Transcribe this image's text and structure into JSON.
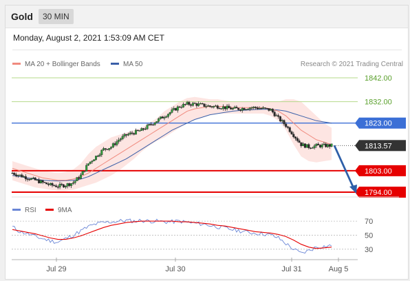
{
  "instrument": "Gold",
  "timeframe": "30 MIN",
  "timestamp": "Monday, August 2, 2021 1:53:09 AM CET",
  "credit": "Research © 2021 Trading Central",
  "colors": {
    "ma20": "#f08a7e",
    "ma50": "#3a5fa8",
    "resistance_green": "#b5d98a",
    "pivot_blue": "#3b6fd6",
    "support_red": "#e60000",
    "current_price_bg": "#333333",
    "rsi": "#6a86d6",
    "rsi_ma": "#e60000",
    "arrow": "#2e5fa8"
  },
  "chart_data": {
    "type": "line",
    "subtype": "candlestick",
    "price_legend": [
      "MA 20 + Bollinger Bands",
      "MA 50"
    ],
    "levels": [
      {
        "value": 1842.0,
        "label": "1842.00",
        "kind": "resistance"
      },
      {
        "value": 1832.0,
        "label": "1832.00",
        "kind": "resistance"
      },
      {
        "value": 1823.0,
        "label": "1823.00",
        "kind": "pivot"
      },
      {
        "value": 1813.57,
        "label": "1813.57",
        "kind": "current"
      },
      {
        "value": 1803.0,
        "label": "1803.00",
        "kind": "support"
      },
      {
        "value": 1794.0,
        "label": "1794.00",
        "kind": "support"
      }
    ],
    "x_labels": [
      "Jul 29",
      "Jul 30",
      "Jul 31",
      "Aug 5"
    ],
    "close_path": [
      1802,
      1801,
      1800,
      1799,
      1798,
      1797,
      1796.5,
      1797,
      1798,
      1801,
      1806,
      1809,
      1812,
      1813,
      1816,
      1818,
      1819,
      1820,
      1822,
      1824,
      1826,
      1828,
      1830,
      1831,
      1831,
      1830.5,
      1830,
      1830,
      1829.5,
      1829,
      1829,
      1829.5,
      1829.5,
      1829,
      1828.5,
      1825,
      1822,
      1818,
      1814,
      1813,
      1813.5,
      1813.5,
      1813.57
    ],
    "ma20": [
      1804,
      1803,
      1802,
      1801,
      1800,
      1799.5,
      1799,
      1799,
      1799.5,
      1800.5,
      1802,
      1804,
      1806,
      1808,
      1810,
      1812,
      1814,
      1816,
      1818,
      1820,
      1822,
      1824,
      1826,
      1828,
      1829,
      1829.5,
      1830,
      1830,
      1830,
      1829.5,
      1829.5,
      1829.5,
      1829.5,
      1829.5,
      1829,
      1828,
      1826,
      1823,
      1820,
      1818,
      1816,
      1815,
      1814
    ],
    "ma50": [
      1801,
      1800.5,
      1800,
      1799.5,
      1799,
      1798.8,
      1798.7,
      1798.8,
      1799,
      1799.5,
      1800.5,
      1802,
      1803.5,
      1805,
      1806.5,
      1808,
      1810,
      1812,
      1814,
      1816,
      1818,
      1820,
      1821.5,
      1823,
      1824.5,
      1825.5,
      1826.5,
      1827,
      1827.5,
      1828,
      1828.3,
      1828.5,
      1828.7,
      1828.8,
      1828.8,
      1828.5,
      1828,
      1827,
      1826,
      1825,
      1824,
      1823.5,
      1823
    ],
    "bb_upper": [
      1807,
      1806,
      1805,
      1804,
      1803,
      1802.5,
      1802,
      1802.5,
      1803.5,
      1806,
      1810,
      1813,
      1815,
      1817,
      1818,
      1819,
      1820,
      1821,
      1823,
      1825,
      1828,
      1830,
      1832,
      1833.5,
      1834,
      1833.5,
      1833,
      1833,
      1832.5,
      1832,
      1832,
      1832,
      1832,
      1832,
      1832,
      1832,
      1833,
      1833,
      1832,
      1829,
      1826,
      1823,
      1821
    ],
    "bb_lower": [
      1799,
      1798,
      1797,
      1796,
      1795.5,
      1795,
      1794.5,
      1794.5,
      1795,
      1796,
      1797,
      1798,
      1799.5,
      1801,
      1803,
      1805.5,
      1808,
      1811,
      1813.5,
      1815.5,
      1817,
      1819,
      1821,
      1823,
      1824.5,
      1825.5,
      1826.5,
      1827,
      1827,
      1827,
      1827,
      1827,
      1827,
      1827,
      1826,
      1824,
      1820,
      1814,
      1809,
      1807,
      1806.5,
      1807,
      1807.5
    ],
    "projection": {
      "from": 1813.57,
      "to": 1794.0
    },
    "rsi_legend": [
      "RSI",
      "9MA"
    ],
    "rsi_levels": [
      70,
      50,
      30
    ],
    "rsi": [
      62,
      55,
      52,
      48,
      45,
      42,
      40,
      45,
      50,
      56,
      62,
      66,
      68,
      69,
      70,
      71,
      70,
      71,
      70,
      70,
      69,
      69,
      70,
      68,
      67,
      66,
      64,
      62,
      60,
      58,
      56,
      54,
      53,
      52,
      50,
      46,
      38,
      30,
      24,
      28,
      33,
      34,
      35
    ],
    "rsi_ma": [
      58,
      56,
      54,
      52,
      49,
      46,
      44,
      44,
      46,
      49,
      53,
      57,
      61,
      64,
      66,
      68,
      69,
      70,
      70,
      70,
      70,
      70,
      69,
      69,
      68,
      67,
      66,
      64,
      63,
      61,
      59,
      57,
      55,
      54,
      53,
      51,
      48,
      43,
      37,
      33,
      31,
      32,
      33
    ]
  }
}
